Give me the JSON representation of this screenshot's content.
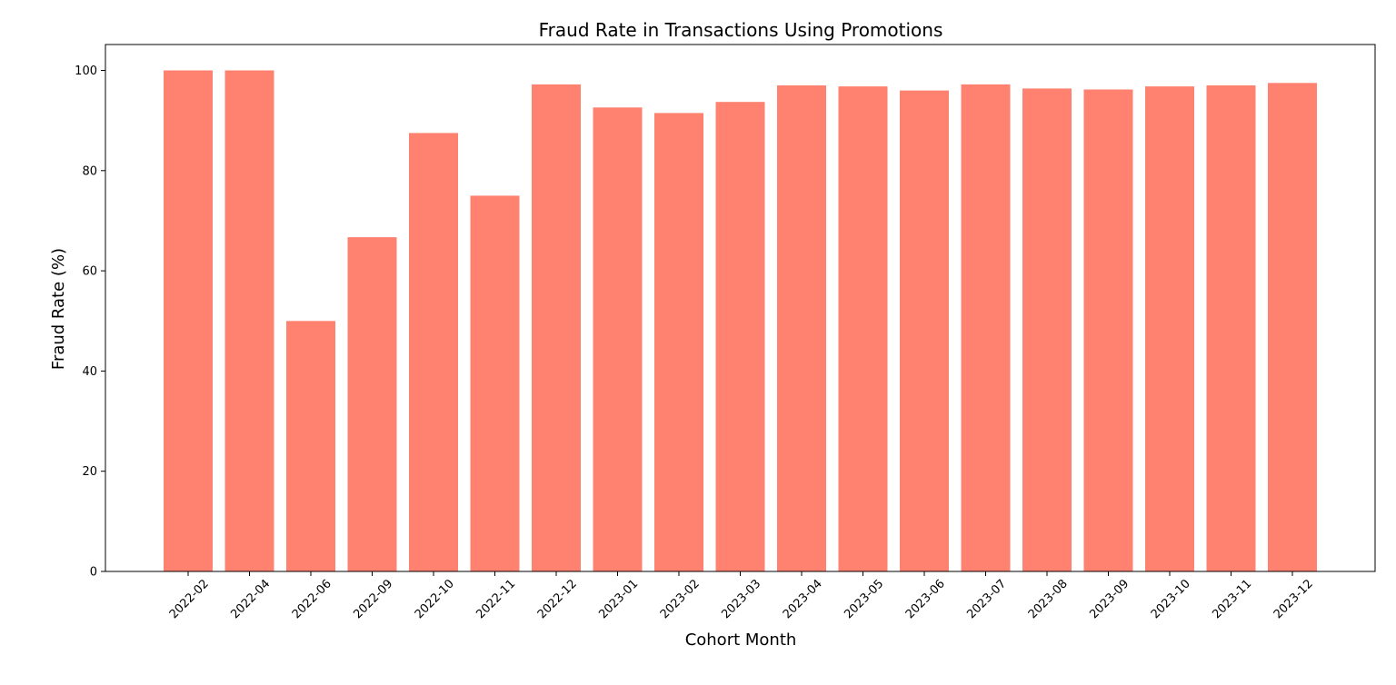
{
  "chart_data": {
    "type": "bar",
    "title": "Fraud Rate in Transactions Using Promotions",
    "xlabel": "Cohort Month",
    "ylabel": "Fraud Rate (%)",
    "ylim": [
      0,
      105
    ],
    "yticks": [
      "0",
      "20",
      "40",
      "60",
      "80",
      "100"
    ],
    "grid": false,
    "bar_color": "#FF8270",
    "categories": [
      "2022-02",
      "2022-04",
      "2022-06",
      "2022-09",
      "2022-10",
      "2022-11",
      "2022-12",
      "2023-01",
      "2023-02",
      "2023-03",
      "2023-04",
      "2023-05",
      "2023-06",
      "2023-07",
      "2023-08",
      "2023-09",
      "2023-10",
      "2023-11",
      "2023-12"
    ],
    "values": [
      100.0,
      100.0,
      50.0,
      66.7,
      87.5,
      75.0,
      97.2,
      92.6,
      91.5,
      93.7,
      97.0,
      96.8,
      96.0,
      97.2,
      96.4,
      96.2,
      96.8,
      97.0,
      97.5
    ]
  }
}
